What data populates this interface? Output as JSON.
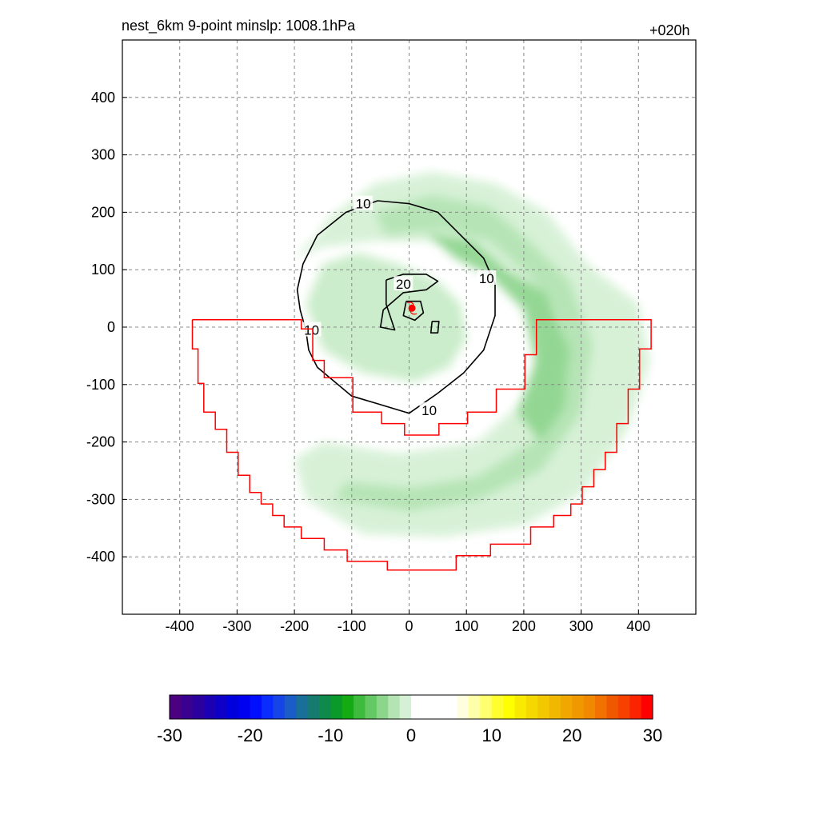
{
  "header": {
    "left_title": "nest_6km  9-point minslp: 1008.1hPa",
    "right_title": "+020h"
  },
  "chart_data": {
    "type": "contour",
    "title": "nest_6km  9-point minslp: 1008.1hPa",
    "forecast_hour_label": "+020h",
    "xlabel": "",
    "ylabel": "",
    "xlim": [
      -500,
      500
    ],
    "ylim": [
      -500,
      500
    ],
    "x_ticks": [
      -400,
      -300,
      -200,
      -100,
      0,
      100,
      200,
      300,
      400
    ],
    "y_ticks": [
      -400,
      -300,
      -200,
      -100,
      0,
      100,
      200,
      300,
      400
    ],
    "grid": true,
    "storm_center": {
      "x": 5,
      "y": 33,
      "marker_color": "#ff0000"
    },
    "contour_lines": [
      {
        "level": 10,
        "label": "10",
        "color": "#000000",
        "points": [
          [
            -55,
            220
          ],
          [
            0,
            215
          ],
          [
            50,
            200
          ],
          [
            90,
            160
          ],
          [
            130,
            120
          ],
          [
            150,
            75
          ],
          [
            150,
            20
          ],
          [
            130,
            -40
          ],
          [
            95,
            -80
          ],
          [
            50,
            -115
          ],
          [
            0,
            -150
          ],
          [
            -50,
            -135
          ],
          [
            -100,
            -120
          ],
          [
            -130,
            -95
          ],
          [
            -160,
            -70
          ],
          [
            -175,
            -40
          ],
          [
            -180,
            -5
          ],
          [
            -190,
            30
          ],
          [
            -195,
            65
          ],
          [
            -185,
            110
          ],
          [
            -160,
            160
          ],
          [
            -110,
            200
          ],
          [
            -55,
            220
          ]
        ],
        "label_positions": [
          [
            -80,
            215
          ],
          [
            135,
            85
          ],
          [
            35,
            -145
          ],
          [
            -170,
            -5
          ]
        ]
      },
      {
        "level": 20,
        "label": "20",
        "color": "#000000",
        "points": [
          [
            -40,
            82
          ],
          [
            -10,
            92
          ],
          [
            30,
            92
          ],
          [
            50,
            80
          ],
          [
            30,
            65
          ],
          [
            -10,
            60
          ],
          [
            -45,
            30
          ],
          [
            -50,
            0
          ],
          [
            -25,
            -5
          ],
          [
            -40,
            40
          ],
          [
            -40,
            82
          ]
        ],
        "label_positions": [
          [
            -10,
            75
          ]
        ]
      },
      {
        "level": 20,
        "label": "",
        "color": "#000000",
        "points": [
          [
            -5,
            45
          ],
          [
            20,
            45
          ],
          [
            25,
            25
          ],
          [
            10,
            12
          ],
          [
            -10,
            20
          ],
          [
            -5,
            45
          ]
        ],
        "label_positions": []
      },
      {
        "level": 20,
        "label": "",
        "color": "#000000",
        "points": [
          [
            40,
            10
          ],
          [
            52,
            10
          ],
          [
            50,
            -10
          ],
          [
            38,
            -10
          ],
          [
            40,
            10
          ]
        ],
        "label_positions": []
      }
    ],
    "shaded_bands": [
      {
        "name": "rainband-outer",
        "value": -5,
        "fill": "#d5f0d5",
        "points": [
          [
            -140,
            190
          ],
          [
            -60,
            250
          ],
          [
            40,
            270
          ],
          [
            150,
            250
          ],
          [
            240,
            200
          ],
          [
            310,
            110
          ],
          [
            400,
            40
          ],
          [
            420,
            -60
          ],
          [
            380,
            -180
          ],
          [
            300,
            -290
          ],
          [
            200,
            -345
          ],
          [
            60,
            -365
          ],
          [
            -80,
            -360
          ],
          [
            -180,
            -300
          ],
          [
            -200,
            -230
          ],
          [
            -150,
            -200
          ],
          [
            -20,
            -220
          ],
          [
            120,
            -200
          ],
          [
            220,
            -110
          ],
          [
            240,
            -10
          ],
          [
            200,
            80
          ],
          [
            130,
            120
          ],
          [
            60,
            150
          ],
          [
            -60,
            150
          ],
          [
            -150,
            140
          ],
          [
            -200,
            120
          ],
          [
            -160,
            160
          ],
          [
            -140,
            190
          ]
        ]
      },
      {
        "name": "rainband-mid",
        "value": -8,
        "fill": "#b4e4b4",
        "points": [
          [
            -60,
            200
          ],
          [
            40,
            230
          ],
          [
            140,
            210
          ],
          [
            220,
            140
          ],
          [
            280,
            80
          ],
          [
            320,
            -30
          ],
          [
            300,
            -150
          ],
          [
            230,
            -250
          ],
          [
            120,
            -300
          ],
          [
            0,
            -320
          ],
          [
            -130,
            -300
          ],
          [
            -110,
            -270
          ],
          [
            0,
            -280
          ],
          [
            120,
            -260
          ],
          [
            230,
            -190
          ],
          [
            270,
            -80
          ],
          [
            260,
            20
          ],
          [
            210,
            90
          ],
          [
            140,
            150
          ],
          [
            60,
            170
          ],
          [
            -40,
            160
          ],
          [
            -60,
            200
          ]
        ]
      },
      {
        "name": "rainband-inner",
        "value": -11,
        "fill": "#8fd58f",
        "points": [
          [
            30,
            165
          ],
          [
            110,
            150
          ],
          [
            170,
            100
          ],
          [
            240,
            60
          ],
          [
            280,
            -40
          ],
          [
            270,
            -140
          ],
          [
            230,
            -200
          ],
          [
            190,
            -150
          ],
          [
            220,
            -60
          ],
          [
            200,
            30
          ],
          [
            140,
            90
          ],
          [
            80,
            120
          ],
          [
            30,
            165
          ]
        ]
      },
      {
        "name": "core-ring",
        "value": -6,
        "fill": "#c8ecc8",
        "points": [
          [
            -180,
            40
          ],
          [
            -150,
            110
          ],
          [
            -90,
            130
          ],
          [
            -20,
            110
          ],
          [
            50,
            80
          ],
          [
            90,
            40
          ],
          [
            100,
            -20
          ],
          [
            70,
            -70
          ],
          [
            10,
            -95
          ],
          [
            -80,
            -80
          ],
          [
            -150,
            -40
          ],
          [
            -180,
            40
          ]
        ]
      }
    ],
    "subdomain_outline": {
      "color": "#ff0000",
      "points": [
        [
          -378,
          13
        ],
        [
          -188,
          13
        ],
        [
          -188,
          -3
        ],
        [
          -168,
          -3
        ],
        [
          -168,
          -58
        ],
        [
          -148,
          -58
        ],
        [
          -148,
          -88
        ],
        [
          -98,
          -88
        ],
        [
          -98,
          -148
        ],
        [
          -48,
          -148
        ],
        [
          -48,
          -168
        ],
        [
          -8,
          -168
        ],
        [
          -8,
          -188
        ],
        [
          52,
          -188
        ],
        [
          52,
          -168
        ],
        [
          102,
          -168
        ],
        [
          102,
          -148
        ],
        [
          152,
          -148
        ],
        [
          152,
          -108
        ],
        [
          202,
          -108
        ],
        [
          202,
          -48
        ],
        [
          222,
          -48
        ],
        [
          222,
          13
        ],
        [
          422,
          13
        ],
        [
          422,
          -38
        ],
        [
          402,
          -38
        ],
        [
          402,
          -108
        ],
        [
          382,
          -108
        ],
        [
          382,
          -168
        ],
        [
          362,
          -168
        ],
        [
          362,
          -218
        ],
        [
          342,
          -218
        ],
        [
          342,
          -248
        ],
        [
          322,
          -248
        ],
        [
          322,
          -278
        ],
        [
          302,
          -278
        ],
        [
          302,
          -308
        ],
        [
          282,
          -308
        ],
        [
          282,
          -328
        ],
        [
          252,
          -328
        ],
        [
          252,
          -348
        ],
        [
          212,
          -348
        ],
        [
          212,
          -378
        ],
        [
          142,
          -378
        ],
        [
          142,
          -398
        ],
        [
          82,
          -398
        ],
        [
          82,
          -423
        ],
        [
          -38,
          -423
        ],
        [
          -38,
          -408
        ],
        [
          -108,
          -408
        ],
        [
          -108,
          -388
        ],
        [
          -148,
          -388
        ],
        [
          -148,
          -368
        ],
        [
          -188,
          -368
        ],
        [
          -188,
          -348
        ],
        [
          -218,
          -348
        ],
        [
          -218,
          -328
        ],
        [
          -238,
          -328
        ],
        [
          -238,
          -308
        ],
        [
          -258,
          -308
        ],
        [
          -258,
          -288
        ],
        [
          -278,
          -288
        ],
        [
          -278,
          -258
        ],
        [
          -298,
          -258
        ],
        [
          -298,
          -218
        ],
        [
          -318,
          -218
        ],
        [
          -318,
          -178
        ],
        [
          -338,
          -178
        ],
        [
          -338,
          -148
        ],
        [
          -358,
          -148
        ],
        [
          -358,
          -98
        ],
        [
          -368,
          -98
        ],
        [
          -368,
          -38
        ],
        [
          -378,
          -38
        ],
        [
          -378,
          13
        ]
      ]
    },
    "colorbar": {
      "min": -30,
      "max": 30,
      "tick_labels": [
        "-30",
        "-20",
        "-10",
        "0",
        "10",
        "20",
        "30"
      ],
      "tick_values": [
        -30,
        -20,
        -10,
        0,
        10,
        20,
        30
      ],
      "colors": [
        "#4b0082",
        "#3a008f",
        "#2a009f",
        "#1b00b4",
        "#0f00c8",
        "#0000dc",
        "#0000f0",
        "#0010ff",
        "#0a2cff",
        "#1545e6",
        "#1a5dc8",
        "#1a6e9a",
        "#177a6e",
        "#108a4a",
        "#0a9a2a",
        "#14aa14",
        "#3cbb3c",
        "#64c864",
        "#8cd68c",
        "#b4e4b4",
        "#d5f0d5",
        "#ffffff",
        "#ffffff",
        "#ffffff",
        "#ffffff",
        "#ffffe0",
        "#ffffaa",
        "#ffff70",
        "#ffff30",
        "#ffff00",
        "#f8ea00",
        "#f4d800",
        "#f2c800",
        "#f0b800",
        "#f0a800",
        "#f09800",
        "#f08800",
        "#f07000",
        "#f05800",
        "#f84000",
        "#fc2400",
        "#ff0000"
      ]
    }
  }
}
